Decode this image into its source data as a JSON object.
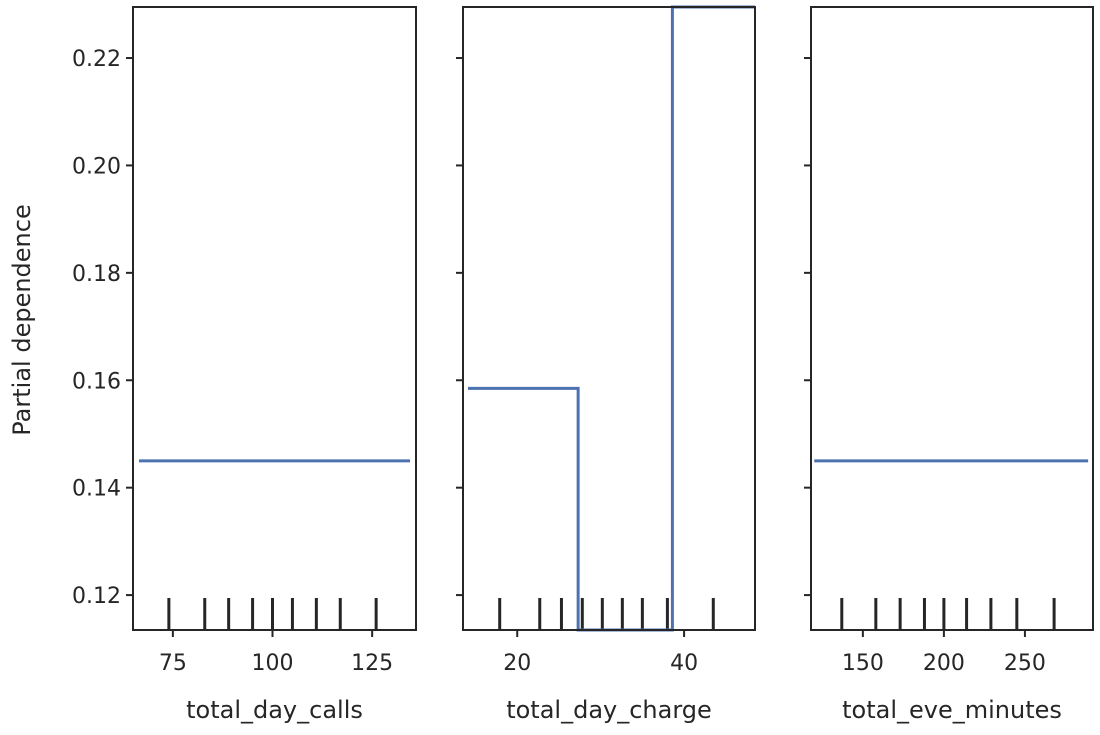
{
  "chart_data": [
    {
      "type": "line",
      "xlabel": "total_day_calls",
      "ylabel": "Partial dependence",
      "xlim": [
        65,
        136
      ],
      "ylim": [
        0.1135,
        0.2295
      ],
      "xticks": [
        75,
        100,
        125
      ],
      "xtick_labels": [
        "75",
        "100",
        "125"
      ],
      "yticks": [
        0.12,
        0.14,
        0.16,
        0.18,
        0.2,
        0.22
      ],
      "ytick_labels": [
        "0.12",
        "0.14",
        "0.16",
        "0.18",
        "0.20",
        "0.22"
      ],
      "series": [
        {
          "x": [
            66.5,
            134.5
          ],
          "y": [
            0.145,
            0.145
          ]
        }
      ],
      "deciles": [
        74,
        83,
        89,
        95,
        100,
        105,
        111,
        117,
        126
      ],
      "line_color": "#4c72b0"
    },
    {
      "type": "line",
      "xlabel": "total_day_charge",
      "xlim": [
        13.5,
        48.5
      ],
      "ylim": [
        0.1135,
        0.2295
      ],
      "xticks": [
        20,
        40
      ],
      "xtick_labels": [
        "20",
        "40"
      ],
      "series": [
        {
          "x": [
            14.1,
            27.3,
            27.3,
            27.6,
            27.6,
            38.6,
            38.6,
            48.5
          ],
          "y": [
            0.1585,
            0.1585,
            0.1135,
            0.1135,
            0.1135,
            0.1135,
            0.2295,
            0.2295
          ]
        }
      ],
      "deciles": [
        17.9,
        22.7,
        25.3,
        27.8,
        30.2,
        32.6,
        35.0,
        38.0,
        43.5
      ],
      "line_color": "#4c72b0"
    },
    {
      "type": "line",
      "xlabel": "total_eve_minutes",
      "xlim": [
        118,
        292
      ],
      "ylim": [
        0.1135,
        0.2295
      ],
      "xticks": [
        150,
        200,
        250
      ],
      "xtick_labels": [
        "150",
        "200",
        "250"
      ],
      "series": [
        {
          "x": [
            120,
            289
          ],
          "y": [
            0.145,
            0.145
          ]
        }
      ],
      "deciles": [
        137,
        158,
        173,
        188,
        200,
        214,
        229,
        245,
        268
      ],
      "line_color": "#4c72b0"
    }
  ]
}
